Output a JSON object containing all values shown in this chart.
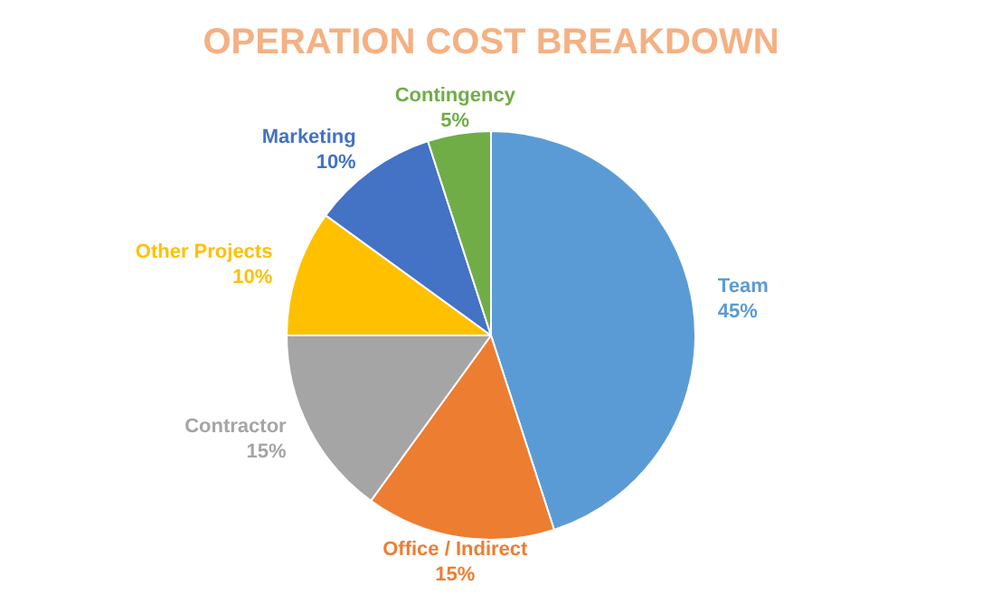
{
  "chart_data": {
    "type": "pie",
    "title": "OPERATION COST BREAKDOWN",
    "categories": [
      "Team",
      "Office / Indirect",
      "Contractor",
      "Other Projects",
      "Marketing",
      "Contingency"
    ],
    "values": [
      45,
      15,
      15,
      10,
      10,
      5
    ],
    "colors": [
      "#5b9bd5",
      "#ed7d31",
      "#a5a5a5",
      "#ffc000",
      "#4472c4",
      "#70ad47"
    ],
    "value_labels": [
      "45%",
      "15%",
      "15%",
      "10%",
      "10%",
      "5%"
    ],
    "legend": false
  }
}
